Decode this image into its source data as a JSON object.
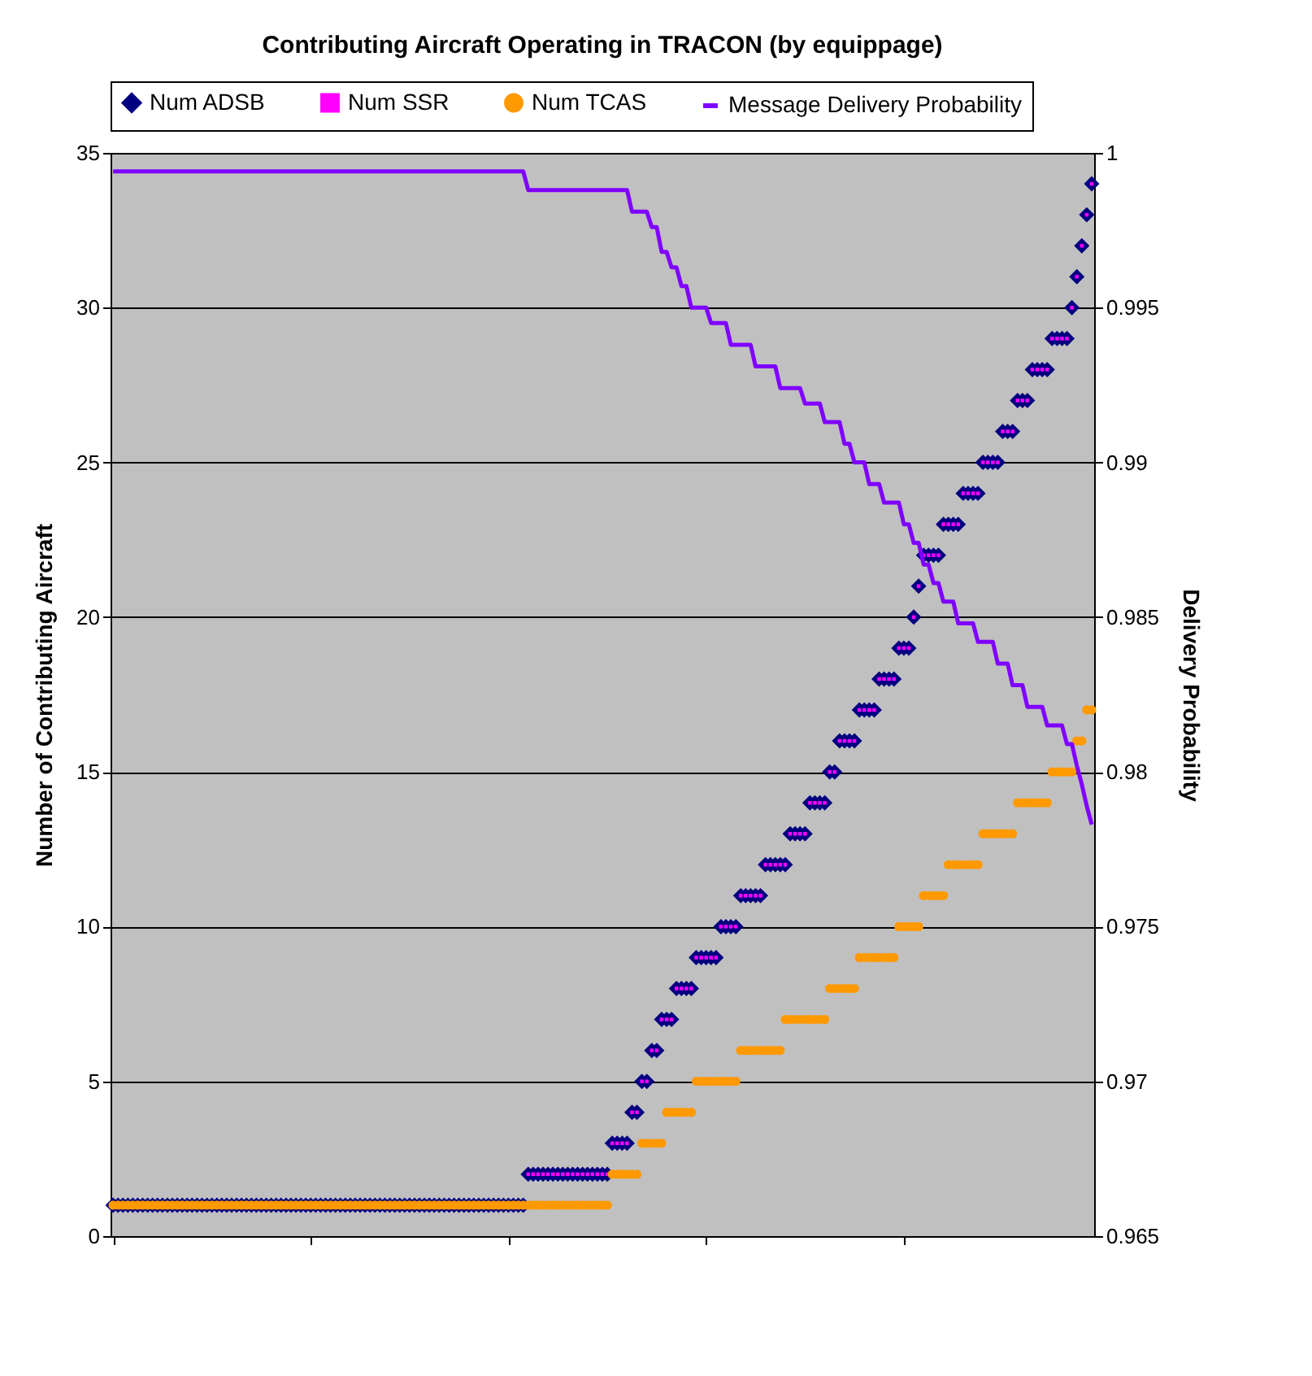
{
  "chart_data": {
    "type": "scatter",
    "title": "Contributing Aircraft Operating in TRACON (by equippage)",
    "ylabel": "Number of Contributing Aircraft",
    "y2label": "Delivery Probability",
    "categories": [
      null,
      null,
      null,
      null,
      null,
      null,
      null,
      null,
      null,
      null,
      null,
      null,
      null,
      null,
      null,
      null,
      null,
      null,
      null,
      null,
      null,
      null,
      null,
      null,
      null,
      null,
      null,
      null,
      null,
      null,
      null,
      null,
      null,
      null,
      null,
      null,
      null,
      null,
      null,
      null,
      null,
      null,
      null,
      null,
      null,
      null,
      null,
      null,
      null,
      null,
      null,
      null,
      null,
      null,
      null,
      null,
      null,
      null,
      null,
      null,
      null,
      null,
      null,
      null,
      null,
      null,
      null,
      null,
      null,
      null,
      null,
      null,
      null,
      null,
      null,
      null,
      null,
      null,
      null,
      null,
      null,
      null,
      null,
      null,
      null,
      null,
      null,
      null,
      null,
      null,
      null,
      null,
      null,
      null,
      null,
      null,
      null,
      null,
      null,
      null,
      null,
      null,
      null,
      null,
      null,
      null,
      null,
      null,
      null,
      null,
      null,
      null,
      null,
      null,
      null,
      null,
      null,
      null,
      null,
      null,
      null,
      null,
      null,
      null,
      null,
      null,
      null,
      null,
      null,
      null,
      null,
      null,
      null,
      null,
      null,
      null,
      null,
      null,
      null,
      null,
      null,
      null,
      null,
      null,
      null,
      null,
      null,
      null,
      null,
      null,
      null,
      null,
      null,
      null,
      null,
      null,
      null,
      null,
      null,
      null,
      null,
      null,
      null,
      null,
      null,
      null,
      null,
      null,
      null,
      null,
      null,
      null,
      null,
      null,
      null,
      null,
      null,
      null,
      null,
      null,
      null,
      null,
      null,
      null,
      null,
      null,
      null,
      null,
      null,
      null,
      null,
      null,
      null,
      null,
      null,
      null,
      null,
      null,
      null
    ],
    "ylim": [
      0,
      35
    ],
    "yticks": [
      0,
      5,
      10,
      15,
      20,
      25,
      30,
      35
    ],
    "y2lim": [
      0.965,
      1
    ],
    "y2ticks": [
      0.965,
      0.97,
      0.975,
      0.98,
      0.985,
      0.99,
      0.995,
      1
    ],
    "grid": "y",
    "legend": "top",
    "series": [
      {
        "name": "Num ADSB",
        "marker": "diamond",
        "color": "#000080",
        "values": [
          1,
          1,
          1,
          1,
          1,
          1,
          1,
          1,
          1,
          1,
          1,
          1,
          1,
          1,
          1,
          1,
          1,
          1,
          1,
          1,
          1,
          1,
          1,
          1,
          1,
          1,
          1,
          1,
          1,
          1,
          1,
          1,
          1,
          1,
          1,
          1,
          1,
          1,
          1,
          1,
          1,
          1,
          1,
          1,
          1,
          1,
          1,
          1,
          1,
          1,
          1,
          1,
          1,
          1,
          1,
          1,
          1,
          1,
          1,
          1,
          1,
          1,
          1,
          1,
          1,
          1,
          1,
          1,
          1,
          1,
          1,
          1,
          1,
          1,
          1,
          1,
          1,
          1,
          1,
          1,
          1,
          1,
          1,
          1,
          2,
          2,
          2,
          2,
          2,
          2,
          2,
          2,
          2,
          2,
          2,
          2,
          2,
          2,
          2,
          2,
          2,
          3,
          3,
          3,
          3,
          4,
          4,
          5,
          5,
          6,
          6,
          7,
          7,
          7,
          8,
          8,
          8,
          8,
          9,
          9,
          9,
          9,
          9,
          10,
          10,
          10,
          10,
          11,
          11,
          11,
          11,
          11,
          12,
          12,
          12,
          12,
          12,
          13,
          13,
          13,
          13,
          14,
          14,
          14,
          14,
          15,
          15,
          16,
          16,
          16,
          16,
          17,
          17,
          17,
          17,
          18,
          18,
          18,
          18,
          19,
          19,
          19,
          20,
          21,
          22,
          22,
          22,
          22,
          23,
          23,
          23,
          23,
          24,
          24,
          24,
          24,
          25,
          25,
          25,
          25,
          26,
          26,
          26,
          27,
          27,
          27,
          28,
          28,
          28,
          28,
          29,
          29,
          29,
          29,
          30,
          31,
          32,
          33,
          34
        ]
      },
      {
        "name": "Num SSR",
        "marker": "square",
        "color": "#ff00ff",
        "values": [
          null,
          null,
          null,
          null,
          null,
          null,
          null,
          null,
          null,
          null,
          null,
          null,
          null,
          null,
          null,
          null,
          null,
          null,
          null,
          null,
          null,
          null,
          null,
          null,
          null,
          null,
          null,
          null,
          null,
          null,
          null,
          null,
          null,
          null,
          null,
          null,
          null,
          null,
          null,
          null,
          null,
          null,
          null,
          null,
          null,
          null,
          null,
          null,
          null,
          null,
          null,
          null,
          null,
          null,
          null,
          null,
          null,
          null,
          null,
          null,
          null,
          null,
          null,
          null,
          null,
          null,
          null,
          null,
          null,
          null,
          null,
          null,
          null,
          null,
          null,
          null,
          null,
          null,
          null,
          null,
          null,
          null,
          null,
          null,
          2,
          2,
          2,
          2,
          2,
          2,
          2,
          2,
          2,
          2,
          2,
          2,
          2,
          2,
          2,
          2,
          2,
          3,
          3,
          3,
          3,
          4,
          4,
          5,
          5,
          6,
          6,
          7,
          7,
          7,
          8,
          8,
          8,
          8,
          9,
          9,
          9,
          9,
          9,
          10,
          10,
          10,
          10,
          11,
          11,
          11,
          11,
          11,
          12,
          12,
          12,
          12,
          12,
          13,
          13,
          13,
          13,
          14,
          14,
          14,
          14,
          15,
          15,
          16,
          16,
          16,
          16,
          17,
          17,
          17,
          17,
          18,
          18,
          18,
          18,
          19,
          19,
          19,
          20,
          21,
          22,
          22,
          22,
          22,
          23,
          23,
          23,
          23,
          24,
          24,
          24,
          24,
          25,
          25,
          25,
          25,
          26,
          26,
          26,
          27,
          27,
          27,
          28,
          28,
          28,
          28,
          29,
          29,
          29,
          29,
          30,
          31,
          32,
          33,
          34
        ]
      },
      {
        "name": "Num TCAS",
        "marker": "circle",
        "color": "#ff9900",
        "values": [
          1,
          1,
          1,
          1,
          1,
          1,
          1,
          1,
          1,
          1,
          1,
          1,
          1,
          1,
          1,
          1,
          1,
          1,
          1,
          1,
          1,
          1,
          1,
          1,
          1,
          1,
          1,
          1,
          1,
          1,
          1,
          1,
          1,
          1,
          1,
          1,
          1,
          1,
          1,
          1,
          1,
          1,
          1,
          1,
          1,
          1,
          1,
          1,
          1,
          1,
          1,
          1,
          1,
          1,
          1,
          1,
          1,
          1,
          1,
          1,
          1,
          1,
          1,
          1,
          1,
          1,
          1,
          1,
          1,
          1,
          1,
          1,
          1,
          1,
          1,
          1,
          1,
          1,
          1,
          1,
          1,
          1,
          1,
          1,
          1,
          1,
          1,
          1,
          1,
          1,
          1,
          1,
          1,
          1,
          1,
          1,
          1,
          1,
          1,
          1,
          1,
          2,
          2,
          2,
          2,
          2,
          2,
          3,
          3,
          3,
          3,
          3,
          4,
          4,
          4,
          4,
          4,
          4,
          5,
          5,
          5,
          5,
          5,
          5,
          5,
          5,
          5,
          6,
          6,
          6,
          6,
          6,
          6,
          6,
          6,
          6,
          7,
          7,
          7,
          7,
          7,
          7,
          7,
          7,
          7,
          8,
          8,
          8,
          8,
          8,
          8,
          9,
          9,
          9,
          9,
          9,
          9,
          9,
          9,
          10,
          10,
          10,
          10,
          10,
          11,
          11,
          11,
          11,
          11,
          12,
          12,
          12,
          12,
          12,
          12,
          12,
          13,
          13,
          13,
          13,
          13,
          13,
          13,
          14,
          14,
          14,
          14,
          14,
          14,
          14,
          15,
          15,
          15,
          15,
          15,
          16,
          16,
          17,
          17
        ]
      },
      {
        "name": "Message Delivery Probability",
        "type": "line",
        "axis": "y2",
        "color": "#8000ff",
        "values": [
          0.9994,
          0.9994,
          0.9994,
          0.9994,
          0.9994,
          0.9994,
          0.9994,
          0.9994,
          0.9994,
          0.9994,
          0.9994,
          0.9994,
          0.9994,
          0.9994,
          0.9994,
          0.9994,
          0.9994,
          0.9994,
          0.9994,
          0.9994,
          0.9994,
          0.9994,
          0.9994,
          0.9994,
          0.9994,
          0.9994,
          0.9994,
          0.9994,
          0.9994,
          0.9994,
          0.9994,
          0.9994,
          0.9994,
          0.9994,
          0.9994,
          0.9994,
          0.9994,
          0.9994,
          0.9994,
          0.9994,
          0.9994,
          0.9994,
          0.9994,
          0.9994,
          0.9994,
          0.9994,
          0.9994,
          0.9994,
          0.9994,
          0.9994,
          0.9994,
          0.9994,
          0.9994,
          0.9994,
          0.9994,
          0.9994,
          0.9994,
          0.9994,
          0.9994,
          0.9994,
          0.9994,
          0.9994,
          0.9994,
          0.9994,
          0.9994,
          0.9994,
          0.9994,
          0.9994,
          0.9994,
          0.9994,
          0.9994,
          0.9994,
          0.9994,
          0.9994,
          0.9994,
          0.9994,
          0.9994,
          0.9994,
          0.9994,
          0.9994,
          0.9994,
          0.9994,
          0.9994,
          0.9994,
          0.9988,
          0.9988,
          0.9988,
          0.9988,
          0.9988,
          0.9988,
          0.9988,
          0.9988,
          0.9988,
          0.9988,
          0.9988,
          0.9988,
          0.9988,
          0.9988,
          0.9988,
          0.9988,
          0.9988,
          0.9988,
          0.9988,
          0.9988,
          0.9988,
          0.9981,
          0.9981,
          0.9981,
          0.9981,
          0.9976,
          0.9976,
          0.9968,
          0.9968,
          0.9963,
          0.9963,
          0.9957,
          0.9957,
          0.995,
          0.995,
          0.995,
          0.995,
          0.9945,
          0.9945,
          0.9945,
          0.9945,
          0.9938,
          0.9938,
          0.9938,
          0.9938,
          0.9938,
          0.9931,
          0.9931,
          0.9931,
          0.9931,
          0.9931,
          0.9924,
          0.9924,
          0.9924,
          0.9924,
          0.9924,
          0.9919,
          0.9919,
          0.9919,
          0.9919,
          0.9913,
          0.9913,
          0.9913,
          0.9913,
          0.9906,
          0.9906,
          0.99,
          0.99,
          0.99,
          0.9893,
          0.9893,
          0.9893,
          0.9887,
          0.9887,
          0.9887,
          0.9887,
          0.988,
          0.988,
          0.9874,
          0.9874,
          0.9867,
          0.9867,
          0.9861,
          0.9861,
          0.9855,
          0.9855,
          0.9855,
          0.9848,
          0.9848,
          0.9848,
          0.9848,
          0.9842,
          0.9842,
          0.9842,
          0.9842,
          0.9835,
          0.9835,
          0.9835,
          0.9828,
          0.9828,
          0.9828,
          0.9821,
          0.9821,
          0.9821,
          0.9821,
          0.9815,
          0.9815,
          0.9815,
          0.9815,
          0.9809,
          0.9809,
          0.9802,
          0.9796,
          0.9789,
          0.9783
        ]
      }
    ]
  }
}
